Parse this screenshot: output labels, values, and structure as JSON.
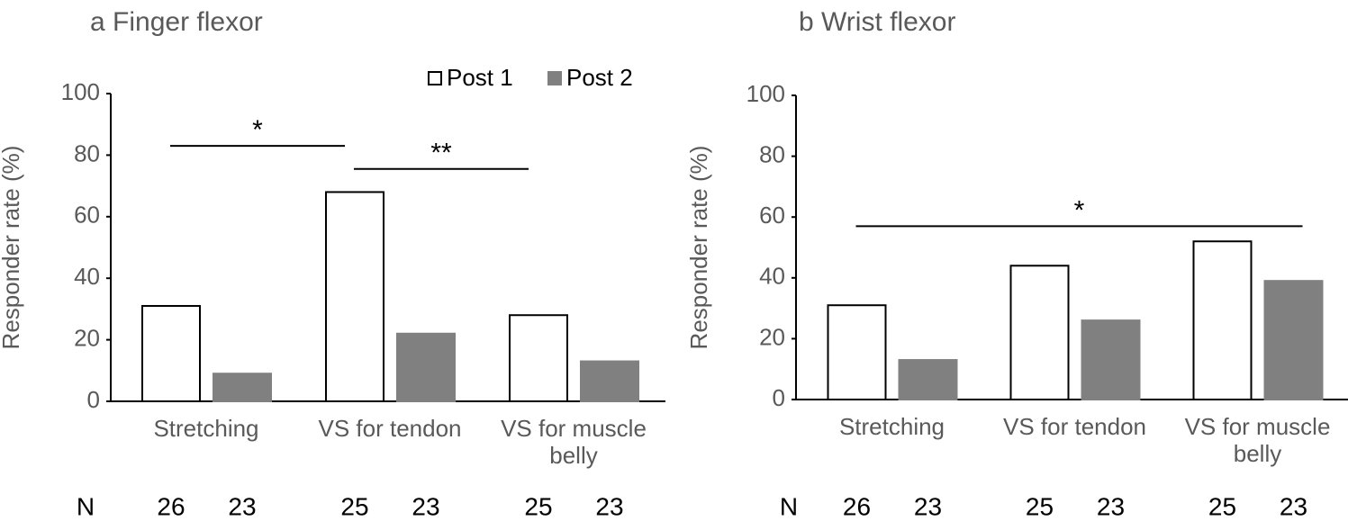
{
  "chart_data": [
    {
      "type": "bar",
      "title": "a Finger flexor",
      "y_label": "Responder rate (%)",
      "categories": [
        "Stretching",
        "VS for tendon",
        "VS for muscle belly"
      ],
      "series": [
        {
          "name": "Post 1",
          "color": "#ffffff",
          "values": [
            31,
            68,
            28
          ],
          "n": [
            26,
            25,
            25
          ]
        },
        {
          "name": "Post 2",
          "color": "#808080",
          "values": [
            9,
            22,
            13
          ],
          "n": [
            23,
            23,
            23
          ]
        }
      ],
      "n_label": "N",
      "ylim": [
        0,
        100
      ],
      "yticks": [
        0,
        20,
        40,
        60,
        80,
        100
      ],
      "legend": "top-right",
      "significance": [
        {
          "label": "*",
          "between": [
            "Stretching",
            "VS for tendon"
          ],
          "y": 83
        },
        {
          "label": "**",
          "between": [
            "VS for tendon",
            "VS for muscle belly"
          ],
          "y": 75.5
        }
      ]
    },
    {
      "type": "bar",
      "title": "b Wrist flexor",
      "y_label": "Responder rate (%)",
      "categories": [
        "Stretching",
        "VS for tendon",
        "VS for muscle belly"
      ],
      "series": [
        {
          "name": "Post 1",
          "color": "#ffffff",
          "values": [
            31,
            44,
            52
          ],
          "n": [
            26,
            25,
            25
          ]
        },
        {
          "name": "Post 2",
          "color": "#808080",
          "values": [
            13,
            26,
            39
          ],
          "n": [
            23,
            23,
            23
          ]
        }
      ],
      "n_label": "N",
      "ylim": [
        0,
        100
      ],
      "yticks": [
        0,
        20,
        40,
        60,
        80,
        100
      ],
      "legend": "none",
      "significance": [
        {
          "label": "*",
          "between": [
            "Stretching",
            "VS for muscle belly"
          ],
          "y": 57
        }
      ]
    }
  ]
}
